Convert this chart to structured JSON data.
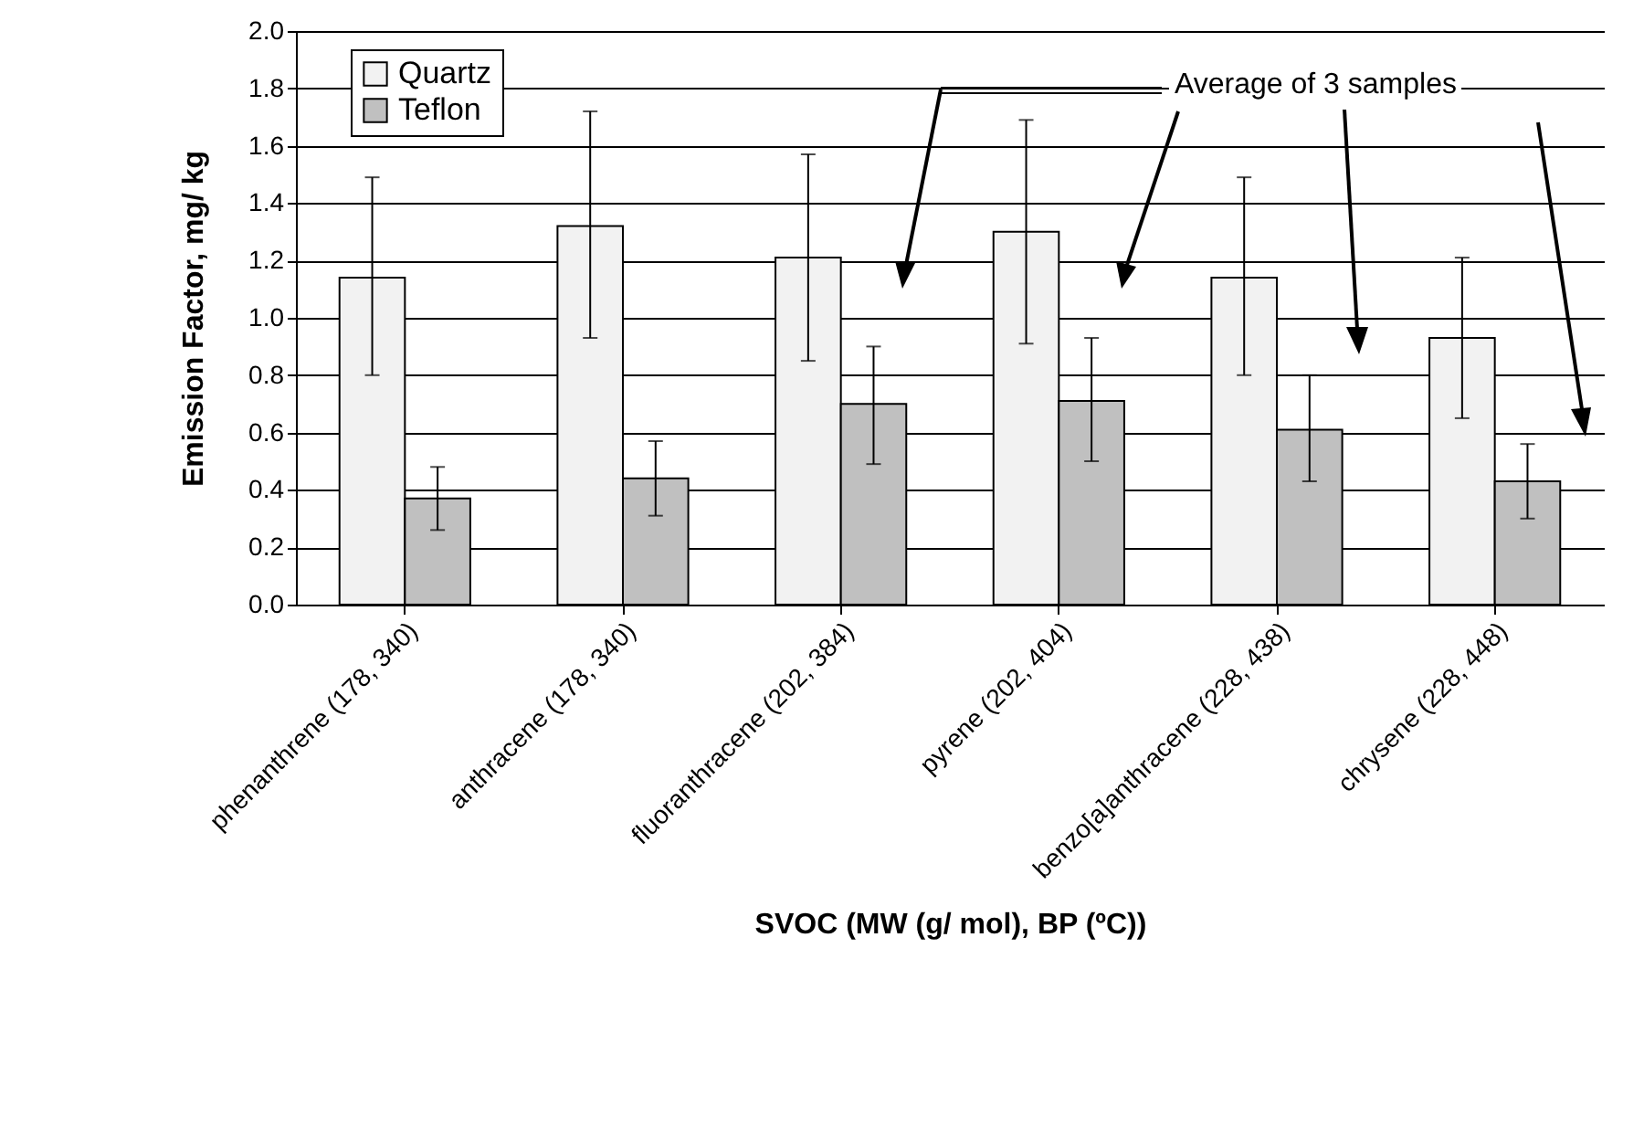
{
  "chart_data": {
    "type": "bar",
    "xlabel": "SVOC (MW (g/ mol), BP (ºC))",
    "ylabel": "Emission Factor, mg/ kg",
    "categories": [
      "phenanthrene (178, 340)",
      "anthracene (178, 340)",
      "fluoranthracene (202, 384)",
      "pyrene (202, 404)",
      "benzo[a]anthracene (228, 438)",
      "chrysene (228, 448)"
    ],
    "series": [
      {
        "name": "Quartz",
        "color": "#f2f2f2",
        "values": [
          1.14,
          1.32,
          1.21,
          1.3,
          1.14,
          0.93
        ],
        "errors": [
          [
            0.8,
            1.49
          ],
          [
            0.93,
            1.72
          ],
          [
            0.85,
            1.57
          ],
          [
            0.91,
            1.69
          ],
          [
            0.8,
            1.49
          ],
          [
            0.65,
            1.21
          ]
        ]
      },
      {
        "name": "Teflon",
        "color": "#c0c0c0",
        "values": [
          0.37,
          0.44,
          0.7,
          0.71,
          0.61,
          0.43
        ],
        "errors": [
          [
            0.26,
            0.48
          ],
          [
            0.31,
            0.57
          ],
          [
            0.49,
            0.9
          ],
          [
            0.5,
            0.93
          ],
          [
            0.43,
            0.8
          ],
          [
            0.3,
            0.56
          ]
        ]
      }
    ],
    "ylim": [
      0,
      2
    ],
    "yticks": [
      {
        "value": 0,
        "label": "0.0"
      },
      {
        "value": 0.2,
        "label": "0.2"
      },
      {
        "value": 0.4,
        "label": "0.4"
      },
      {
        "value": 0.6,
        "label": "0.6"
      },
      {
        "value": 0.8,
        "label": "0.8"
      },
      {
        "value": 1,
        "label": "1.0"
      },
      {
        "value": 1.2,
        "label": "1.2"
      },
      {
        "value": 1.4,
        "label": "1.4"
      },
      {
        "value": 1.6,
        "label": "1.6"
      },
      {
        "value": 1.8,
        "label": "1.8"
      },
      {
        "value": 2,
        "label": "2.0"
      }
    ],
    "grid": "y",
    "legend": "top left",
    "annotations": [
      "Average of 3 samples"
    ]
  }
}
